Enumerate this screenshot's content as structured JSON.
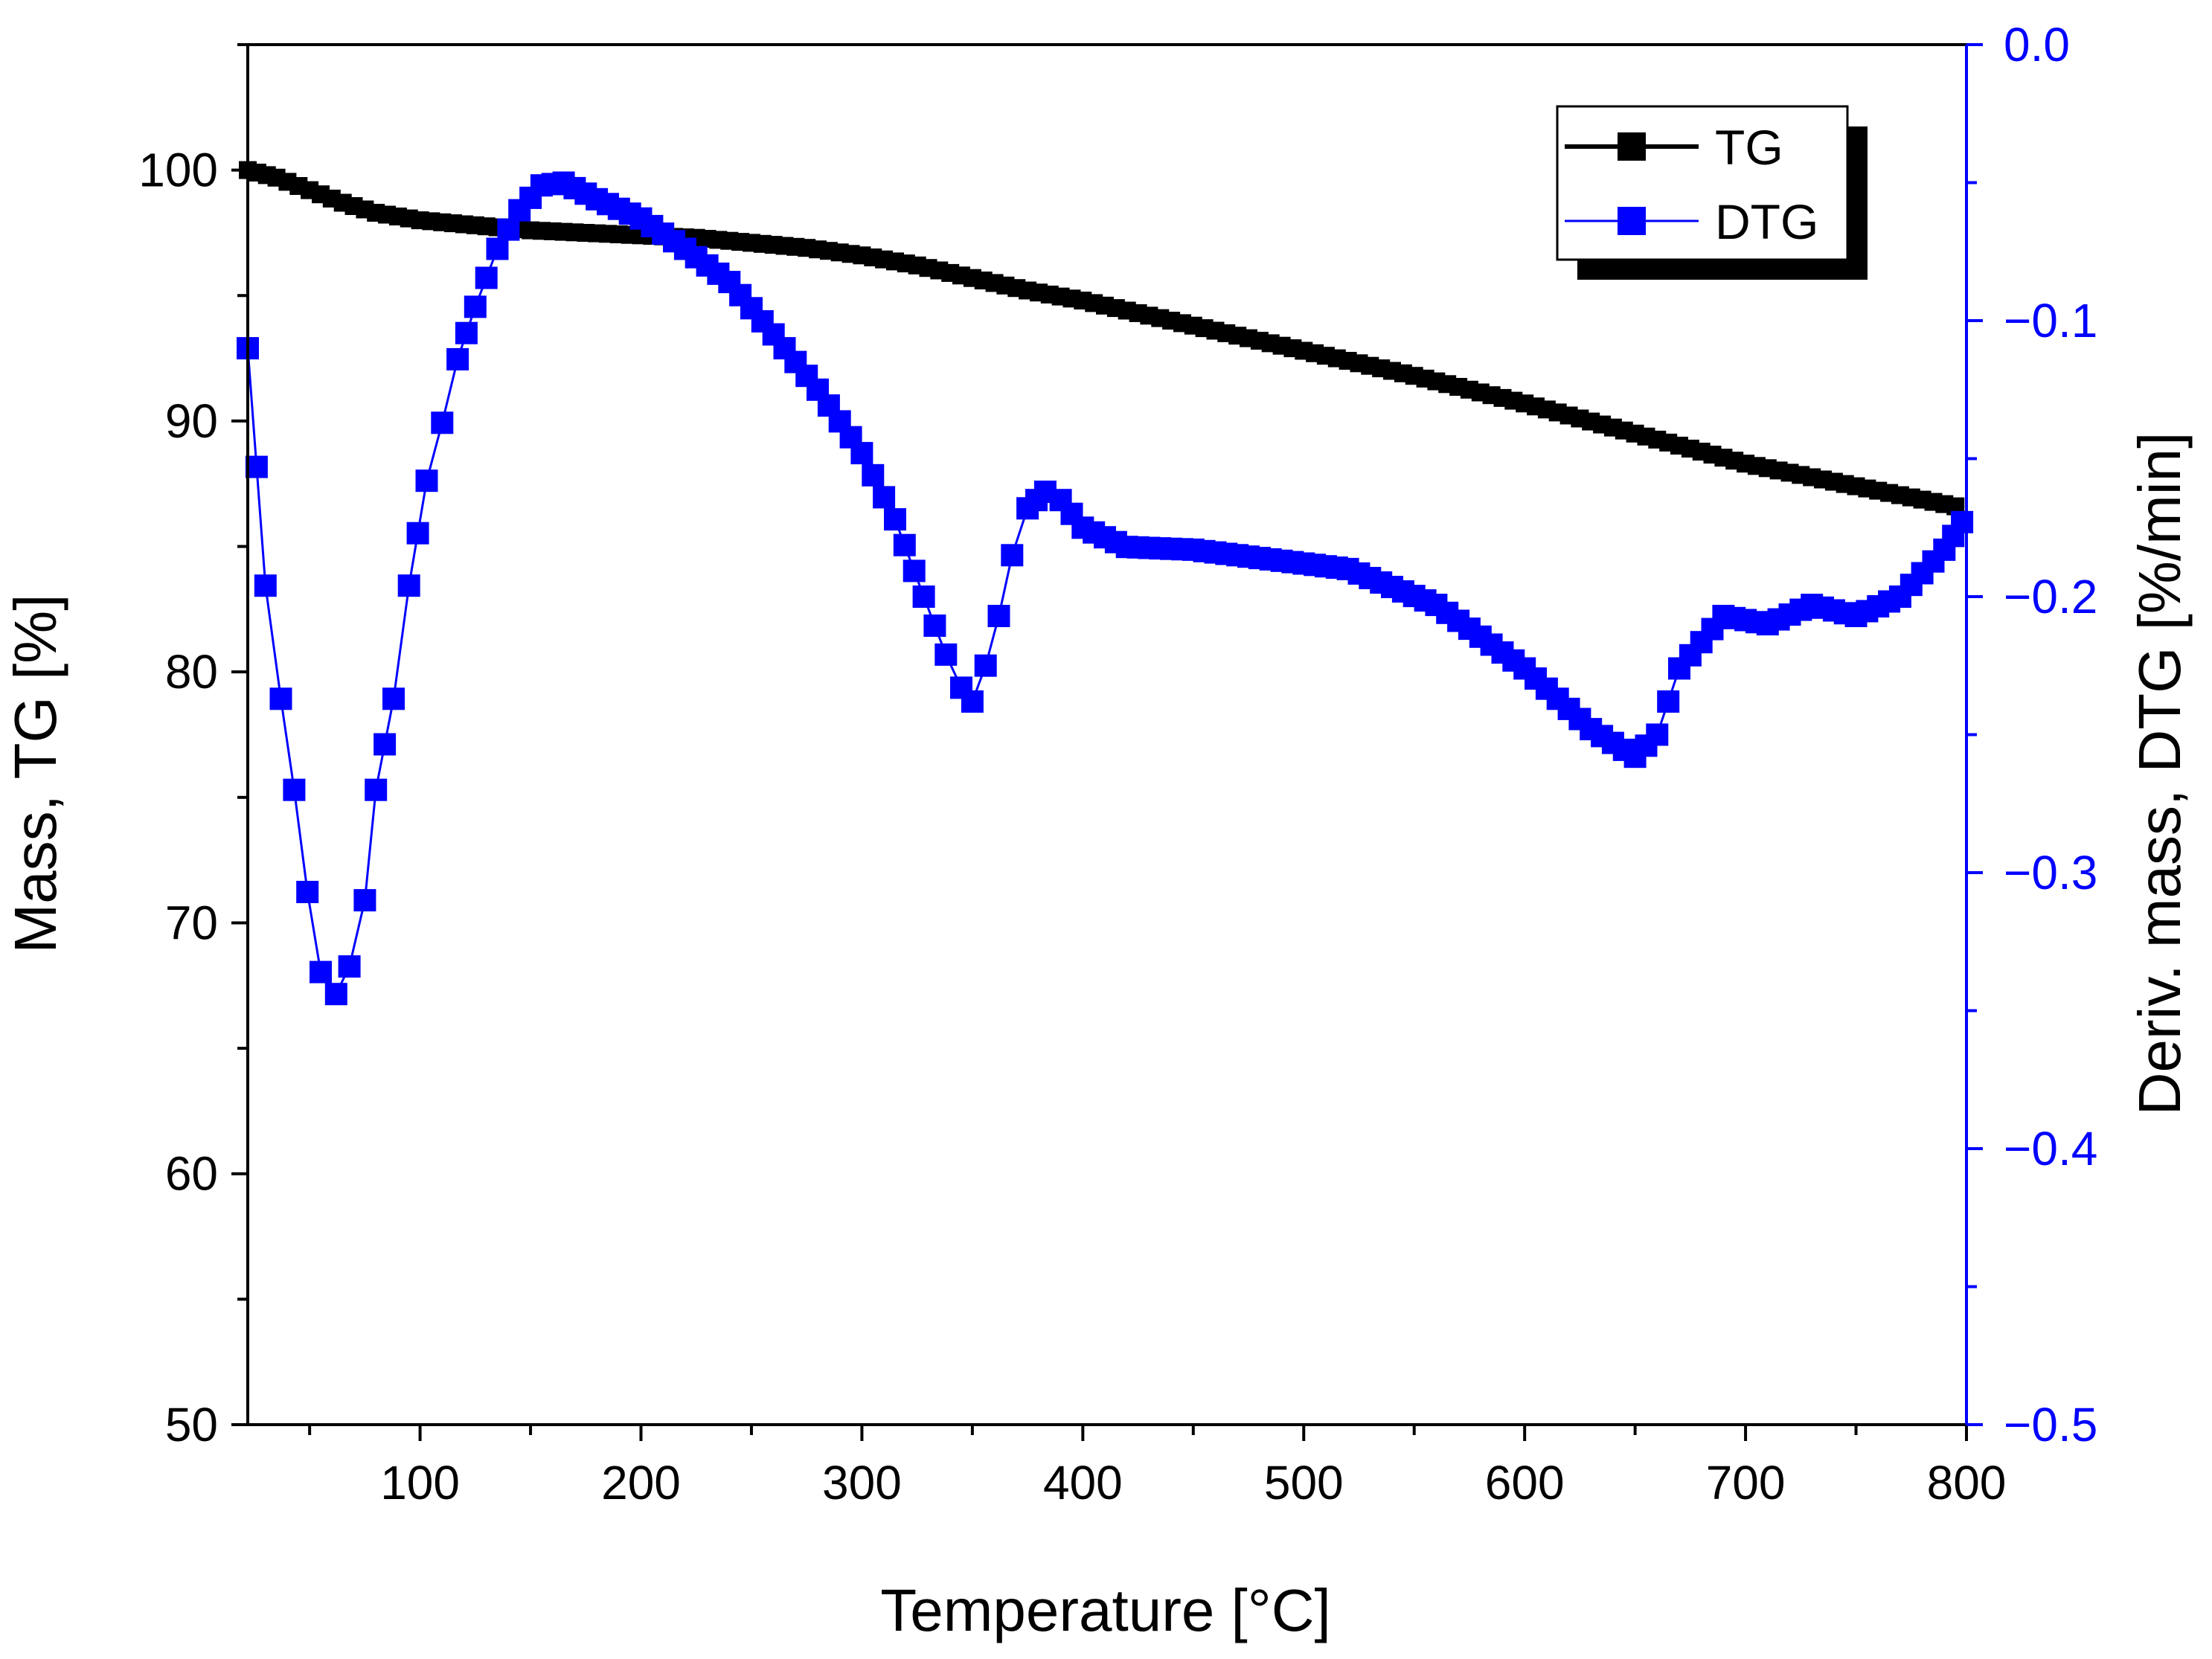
{
  "chart_data": {
    "type": "line",
    "title": "",
    "xlabel": "Temperature [°C]",
    "ylabel_left": "Mass, TG [%]",
    "ylabel_right": "Deriv. mass, DTG [%/min]",
    "xlim": [
      22,
      800
    ],
    "ylim_left": [
      50,
      105
    ],
    "ylim_right": [
      -0.5,
      0.0
    ],
    "x_ticks": [
      100,
      200,
      300,
      400,
      500,
      600,
      700,
      800
    ],
    "x_tick_labels": [
      "100",
      "200",
      "300",
      "400",
      "500",
      "600",
      "700",
      "800"
    ],
    "y_left_ticks": [
      50,
      60,
      70,
      80,
      90,
      100
    ],
    "y_left_tick_labels": [
      "50",
      "60",
      "70",
      "80",
      "90",
      "100"
    ],
    "y_right_ticks": [
      -0.5,
      -0.4,
      -0.3,
      -0.2,
      -0.1,
      0.0
    ],
    "y_right_tick_labels": [
      "−0.5",
      "−0.4",
      "−0.3",
      "−0.2",
      "−0.1",
      "0.0"
    ],
    "legend_position": "top-right",
    "colors": {
      "TG": "#000000",
      "DTG": "#0000ff",
      "right_axis": "#0000ff"
    },
    "series": [
      {
        "name": "TG",
        "axis": "left",
        "x": [
          22,
          35,
          50,
          65,
          80,
          100,
          125,
          150,
          175,
          200,
          225,
          250,
          275,
          300,
          325,
          350,
          375,
          400,
          450,
          500,
          550,
          600,
          650,
          700,
          750,
          795
        ],
        "y": [
          100.0,
          99.7,
          99.2,
          98.7,
          98.3,
          98.0,
          97.8,
          97.6,
          97.5,
          97.4,
          97.3,
          97.1,
          96.9,
          96.6,
          96.2,
          95.7,
          95.2,
          94.8,
          93.8,
          92.8,
          91.8,
          90.7,
          89.5,
          88.3,
          87.4,
          86.6
        ]
      },
      {
        "name": "DTG",
        "axis": "right",
        "x": [
          22,
          30,
          37,
          43,
          49,
          55,
          62,
          68,
          75,
          80,
          88,
          95,
          103,
          110,
          117,
          125,
          135,
          145,
          155,
          165,
          180,
          200,
          220,
          240,
          260,
          280,
          300,
          315,
          328,
          338,
          345,
          350,
          356,
          362,
          368,
          375,
          383,
          390,
          400,
          420,
          450,
          480,
          520,
          560,
          600,
          630,
          650,
          660,
          670,
          690,
          710,
          730,
          750,
          770,
          790,
          798
        ],
        "y": [
          -0.11,
          -0.196,
          -0.237,
          -0.27,
          -0.307,
          -0.336,
          -0.344,
          -0.334,
          -0.31,
          -0.27,
          -0.237,
          -0.196,
          -0.158,
          -0.137,
          -0.114,
          -0.095,
          -0.074,
          -0.06,
          -0.051,
          -0.05,
          -0.056,
          -0.063,
          -0.074,
          -0.086,
          -0.105,
          -0.125,
          -0.148,
          -0.172,
          -0.2,
          -0.221,
          -0.233,
          -0.238,
          -0.225,
          -0.207,
          -0.185,
          -0.168,
          -0.162,
          -0.165,
          -0.175,
          -0.182,
          -0.183,
          -0.186,
          -0.19,
          -0.203,
          -0.226,
          -0.248,
          -0.258,
          -0.25,
          -0.226,
          -0.207,
          -0.21,
          -0.203,
          -0.207,
          -0.2,
          -0.183,
          -0.173
        ]
      }
    ]
  }
}
